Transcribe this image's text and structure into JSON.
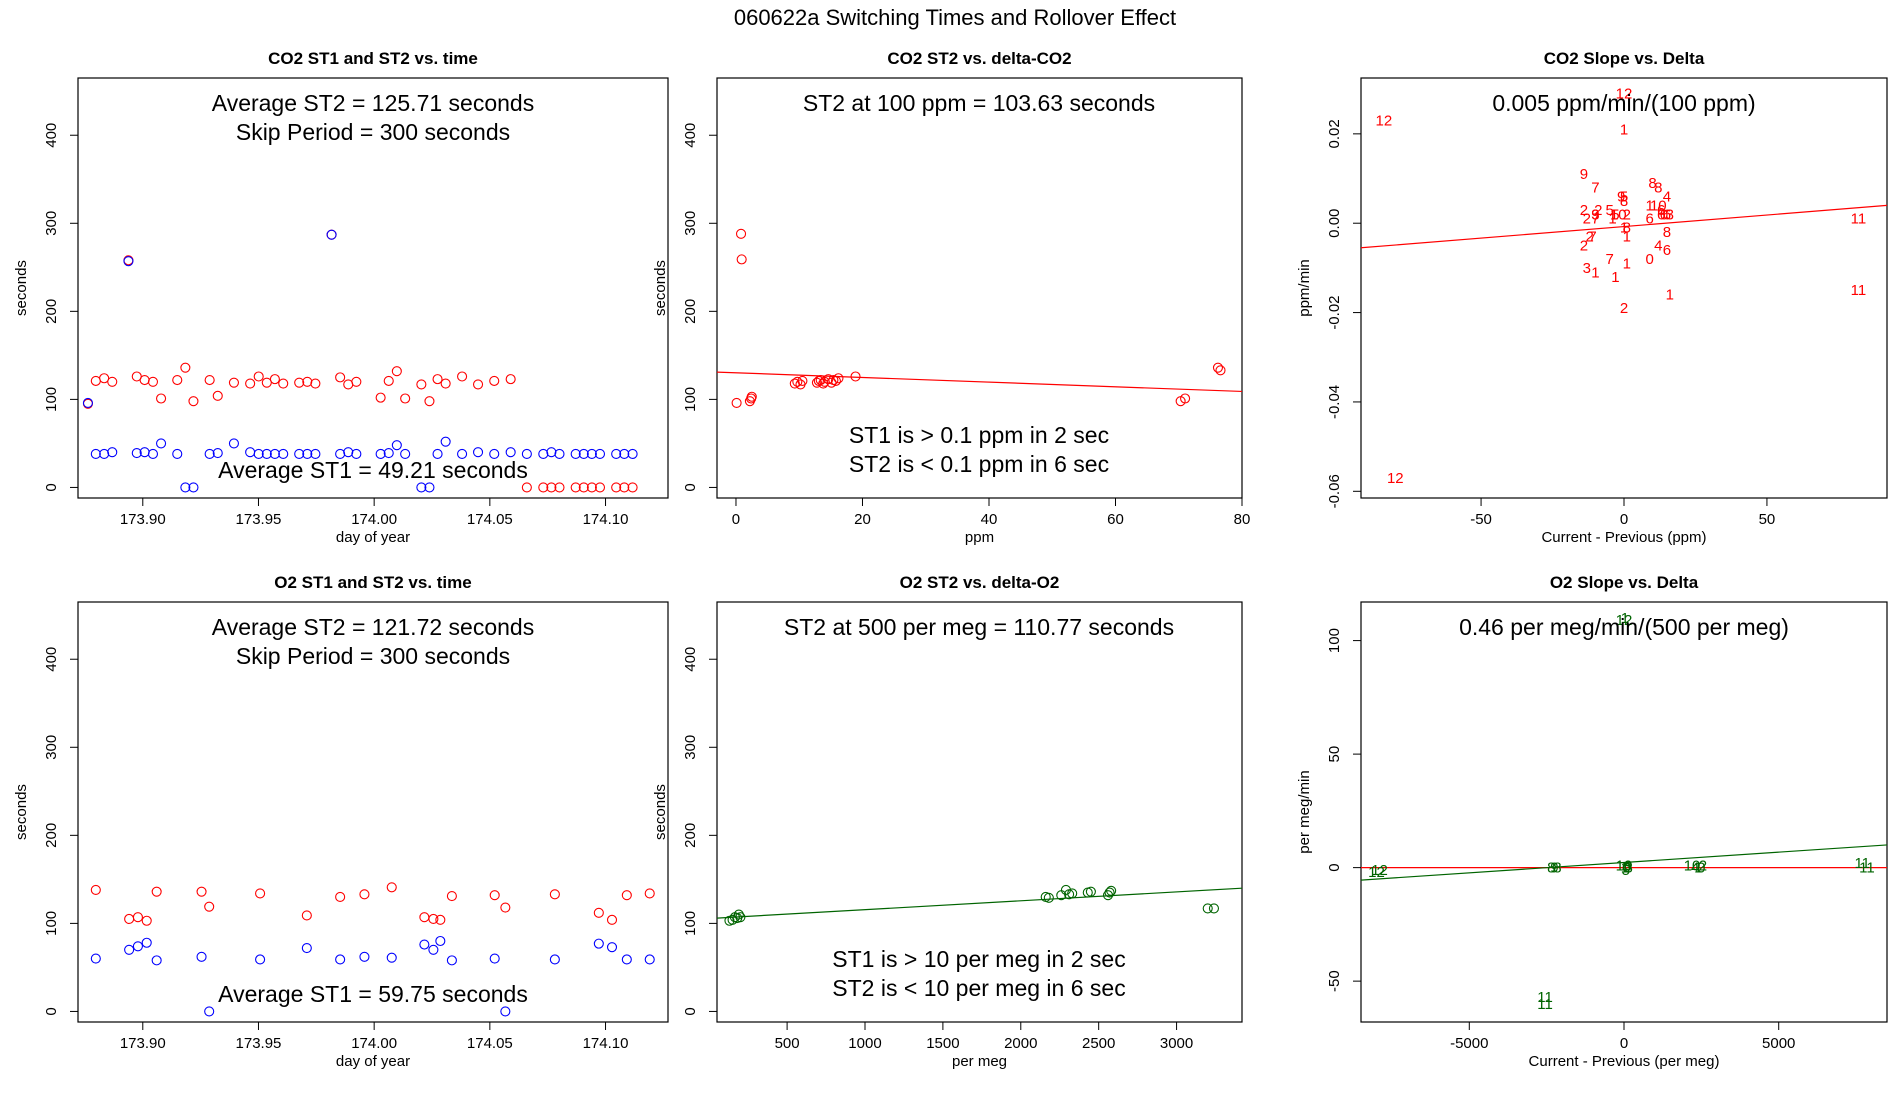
{
  "figure_title": "060622a   Switching Times and Rollover Effect",
  "colors": {
    "st1": "#0000ff",
    "st2": "#ff0000",
    "o2": "#006400",
    "axis": "#000000",
    "purple": "#a020f0"
  },
  "chart_data": [
    {
      "id": "co2_time",
      "type": "scatter",
      "title": "CO2 ST1 and ST2 vs. time",
      "xlabel": "day of year",
      "ylabel": "seconds",
      "xlim": [
        173.872,
        174.127
      ],
      "ylim": [
        -12,
        465
      ],
      "xticks": [
        173.9,
        173.95,
        174.0,
        174.05,
        174.1
      ],
      "xtick_labels": [
        "173.90",
        "173.95",
        "174.00",
        "174.05",
        "174.10"
      ],
      "yticks": [
        0,
        100,
        200,
        300,
        400
      ],
      "annotations": [
        "Average ST2 =  125.71  seconds",
        "Skip Period =  300  seconds",
        "Average ST1 =  49.21  seconds"
      ],
      "series": [
        {
          "name": "ST2",
          "color": "#ff0000",
          "marker": "circle",
          "x": [
            173.8763,
            173.8797,
            173.8833,
            173.8868,
            173.8938,
            173.8974,
            173.9008,
            173.9044,
            173.9079,
            173.9149,
            173.9184,
            173.9219,
            173.9289,
            173.9324,
            173.9394,
            173.9464,
            173.9501,
            173.9536,
            173.9571,
            173.9607,
            173.9676,
            173.9711,
            173.9746,
            173.9816,
            173.9853,
            173.9888,
            173.9923,
            174.0028,
            174.0063,
            174.0098,
            174.0134,
            174.0204,
            174.0239,
            174.0274,
            174.0309,
            174.038,
            174.0449,
            174.0519,
            174.059,
            174.066,
            174.0731,
            174.0766,
            174.0801,
            174.0871,
            174.0906,
            174.0941,
            174.0976,
            174.1046,
            174.1081,
            174.1117
          ],
          "y": [
            95,
            121,
            124,
            120,
            258,
            126,
            122,
            120,
            101,
            122,
            136,
            98,
            122,
            104,
            119,
            118,
            126,
            119,
            123,
            118,
            119,
            120,
            118,
            287,
            125,
            117,
            120,
            102,
            121,
            132,
            101,
            117,
            98,
            123,
            118,
            126,
            117,
            121,
            123,
            0,
            0,
            0,
            0,
            0,
            0,
            0,
            0,
            0,
            0,
            0
          ]
        },
        {
          "name": "ST1",
          "color": "#0000ff",
          "marker": "circle",
          "x": [
            173.8763,
            173.8797,
            173.8833,
            173.8868,
            173.8938,
            173.8974,
            173.9008,
            173.9044,
            173.9079,
            173.9149,
            173.9184,
            173.9219,
            173.9289,
            173.9324,
            173.9394,
            173.9464,
            173.9501,
            173.9536,
            173.9571,
            173.9607,
            173.9676,
            173.9711,
            173.9746,
            173.9816,
            173.9853,
            173.9888,
            173.9923,
            174.0028,
            174.0063,
            174.0098,
            174.0134,
            174.0204,
            174.0239,
            174.0274,
            174.0309,
            174.038,
            174.0449,
            174.0519,
            174.059,
            174.066,
            174.0731,
            174.0766,
            174.0801,
            174.0871,
            174.0906,
            174.0941,
            174.0976,
            174.1046,
            174.1081,
            174.1117
          ],
          "y": [
            96,
            38,
            38,
            40,
            257,
            39,
            40,
            38,
            50,
            38,
            0,
            0,
            38,
            39,
            50,
            40,
            38,
            38,
            38,
            38,
            38,
            38,
            38,
            287,
            38,
            40,
            38,
            38,
            39,
            48,
            38,
            0,
            0,
            38,
            52,
            38,
            40,
            38,
            40,
            38,
            38,
            40,
            38,
            38,
            38,
            38,
            38,
            38,
            38,
            38
          ]
        }
      ]
    },
    {
      "id": "co2_delta",
      "type": "scatter",
      "title": "CO2 ST2 vs. delta-CO2",
      "xlabel": "ppm",
      "ylabel": "seconds",
      "xlim": [
        -3,
        80
      ],
      "ylim": [
        -12,
        465
      ],
      "xticks": [
        0,
        20,
        40,
        60,
        80
      ],
      "xtick_labels": [
        "0",
        "20",
        "40",
        "60",
        "80"
      ],
      "yticks": [
        0,
        100,
        200,
        300,
        400
      ],
      "annotations": [
        "ST2 at 100 ppm =  103.63  seconds",
        "ST1 is > 0.1 ppm in 2 sec",
        "ST2 is < 0.1 ppm in 6 sec"
      ],
      "fit_line": {
        "x": [
          -3,
          80
        ],
        "y": [
          131,
          109
        ],
        "color": "#ff0000"
      },
      "series": [
        {
          "name": "ST2",
          "color": "#ff0000",
          "marker": "circle",
          "x": [
            0.8,
            0.9,
            0.1,
            2.2,
            2.4,
            2.5,
            9.3,
            9.7,
            10.2,
            10.5,
            12.8,
            13.1,
            13.4,
            13.8,
            14.0,
            14.6,
            15.1,
            15.4,
            15.8,
            16.2,
            18.9,
            70.3,
            71.0,
            76.2,
            76.6
          ],
          "y": [
            288,
            259,
            96,
            98,
            101,
            103,
            118,
            120,
            117,
            121,
            119,
            121,
            122,
            118,
            120,
            123,
            119,
            122,
            121,
            124,
            126,
            98,
            101,
            136,
            133
          ]
        }
      ]
    },
    {
      "id": "co2_slope",
      "type": "scatter",
      "title": "CO2 Slope vs. Delta",
      "xlabel": "Current - Previous (ppm)",
      "ylabel": "ppm/min",
      "xlim": [
        -92,
        92
      ],
      "ylim": [
        -0.0615,
        0.0325
      ],
      "xticks": [
        -50,
        0,
        50
      ],
      "xtick_labels": [
        "-50",
        "0",
        "50"
      ],
      "yticks": [
        -0.06,
        -0.04,
        -0.02,
        0.0,
        0.02
      ],
      "ytick_labels": [
        "-0.06",
        "-0.04",
        "-0.02",
        "0.00",
        "0.02"
      ],
      "annotations": [
        "0.005  ppm/min/(100 ppm)"
      ],
      "fit_line": {
        "x": [
          -92,
          92
        ],
        "y": [
          -0.0055,
          0.004
        ],
        "color": "#ff0000"
      },
      "series": [
        {
          "name": "hour labels",
          "color": "#ff0000",
          "marker": "text",
          "x": [
            -84,
            -80,
            0,
            0,
            -14,
            -10,
            -5,
            -9,
            -14,
            -4,
            -10,
            -10,
            -3,
            -10,
            -13,
            -12,
            -11,
            -14,
            -5,
            -13,
            -10,
            -3,
            0,
            -1,
            0,
            1,
            -2,
            0,
            1,
            1,
            10,
            12,
            15,
            9,
            12,
            13,
            16,
            13,
            14,
            15,
            9,
            12,
            15,
            9,
            16,
            0,
            1,
            15,
            82,
            82
          ],
          "y": [
            0.023,
            -0.057,
            0.029,
            0.021,
            0.011,
            0.008,
            0.003,
            0.003,
            0.003,
            0.001,
            0.002,
            0.002,
            0.002,
            0.001,
            0.001,
            -0.003,
            -0.003,
            -0.005,
            -0.008,
            -0.01,
            -0.011,
            -0.012,
            0.006,
            0.006,
            0.005,
            0.002,
            0.002,
            -0.001,
            -0.003,
            -0.009,
            0.009,
            0.008,
            0.006,
            0.004,
            0.004,
            0.003,
            0.002,
            0.002,
            0.002,
            0.002,
            0.001,
            -0.005,
            -0.006,
            -0.008,
            -0.016,
            -0.019,
            -0.001,
            -0.002,
            0.001,
            -0.015
          ],
          "labels": [
            "12",
            "12",
            "12",
            "1",
            "9",
            "7",
            "5",
            "2",
            "2",
            "1",
            "9",
            "3",
            "5",
            "7",
            "2",
            "2",
            "7",
            "2",
            "7",
            "3",
            "1",
            "1",
            "5",
            "9",
            "8",
            "2",
            "10",
            "1",
            "1",
            "1",
            "8",
            "8",
            "4",
            "1",
            "10",
            "6",
            "3",
            "6",
            "0",
            "6",
            "6",
            "4",
            "6",
            "0",
            "1",
            "2",
            "8",
            "8",
            "11",
            "11"
          ]
        }
      ]
    },
    {
      "id": "o2_time",
      "type": "scatter",
      "title": "O2 ST1 and ST2 vs. time",
      "xlabel": "day of year",
      "ylabel": "seconds",
      "xlim": [
        173.872,
        174.127
      ],
      "ylim": [
        -12,
        465
      ],
      "xticks": [
        173.9,
        173.95,
        174.0,
        174.05,
        174.1
      ],
      "xtick_labels": [
        "173.90",
        "173.95",
        "174.00",
        "174.05",
        "174.10"
      ],
      "yticks": [
        0,
        100,
        200,
        300,
        400
      ],
      "annotations": [
        "Average ST2 =  121.72  seconds",
        "Skip Period =  300  seconds",
        "Average ST1 =  59.75  seconds"
      ],
      "series": [
        {
          "name": "ST2",
          "color": "#ff0000",
          "marker": "circle",
          "x": [
            173.8797,
            173.8941,
            173.8979,
            173.9017,
            173.906,
            173.9254,
            173.9287,
            173.9507,
            173.9709,
            173.9853,
            173.9958,
            174.0076,
            174.0217,
            174.0256,
            174.0286,
            174.0336,
            174.0521,
            174.0567,
            174.0781,
            174.0971,
            174.1028,
            174.1092,
            174.1191
          ],
          "y": [
            138,
            105,
            107,
            103,
            136,
            136,
            119,
            134,
            109,
            130,
            133,
            141,
            107,
            105,
            104,
            131,
            132,
            118,
            133,
            112,
            104,
            132,
            134
          ]
        },
        {
          "name": "ST1",
          "color": "#0000ff",
          "marker": "circle",
          "x": [
            173.8797,
            173.8941,
            173.8979,
            173.9017,
            173.906,
            173.9254,
            173.9287,
            173.9507,
            173.9709,
            173.9853,
            173.9958,
            174.0076,
            174.0217,
            174.0256,
            174.0286,
            174.0336,
            174.0521,
            174.0567,
            174.0781,
            174.0971,
            174.1028,
            174.1092,
            174.1191
          ],
          "y": [
            60,
            70,
            74,
            78,
            58,
            62,
            0,
            59,
            72,
            59,
            62,
            61,
            76,
            70,
            80,
            58,
            60,
            0,
            59,
            77,
            73,
            59,
            59
          ]
        }
      ]
    },
    {
      "id": "o2_delta",
      "type": "scatter",
      "title": "O2 ST2 vs. delta-O2",
      "xlabel": "per meg",
      "ylabel": "seconds",
      "xlim": [
        50,
        3420
      ],
      "ylim": [
        -12,
        465
      ],
      "xticks": [
        500,
        1000,
        1500,
        2000,
        2500,
        3000
      ],
      "xtick_labels": [
        "500",
        "1000",
        "1500",
        "2000",
        "2500",
        "3000"
      ],
      "yticks": [
        0,
        100,
        200,
        300,
        400
      ],
      "annotations": [
        "ST2 at 500 per meg =  110.77  seconds",
        "ST1 is > 10 per meg in 2 sec",
        "ST2 is < 10 per meg in 6 sec"
      ],
      "fit_line": {
        "x": [
          50,
          3420
        ],
        "y": [
          106,
          140
        ],
        "color": "#006400"
      },
      "series": [
        {
          "name": "ST2",
          "color": "#006400",
          "marker": "circle",
          "x": [
            130,
            150,
            165,
            180,
            190,
            200,
            2160,
            2180,
            2260,
            2290,
            2310,
            2330,
            2430,
            2450,
            2560,
            2570,
            2580,
            3200,
            3240
          ],
          "y": [
            103,
            104,
            107,
            106,
            110,
            107,
            130,
            129,
            132,
            138,
            133,
            134,
            135,
            136,
            132,
            135,
            137,
            117,
            117
          ]
        }
      ]
    },
    {
      "id": "o2_slope",
      "type": "scatter",
      "title": "O2 Slope vs. Delta",
      "xlabel": "Current - Previous (per meg)",
      "ylabel": "per meg/min",
      "xlim": [
        -8500,
        8500
      ],
      "ylim": [
        -68,
        117
      ],
      "xticks": [
        -5000,
        0,
        5000
      ],
      "xtick_labels": [
        "-5000",
        "0",
        "5000"
      ],
      "yticks": [
        -50,
        0,
        50,
        100
      ],
      "annotations": [
        "0.46  per meg/min/(500 per meg)"
      ],
      "fit_line": {
        "x": [
          -8500,
          8500
        ],
        "y": [
          -5.5,
          10
        ],
        "color": "#006400"
      },
      "ref_line": {
        "y": 0,
        "color": "#ff0000"
      },
      "series": [
        {
          "name": "hour labels",
          "color": "#006400",
          "marker": "text",
          "x": [
            -8000,
            -7900,
            -2350,
            -2250,
            -2150,
            0,
            30,
            60,
            80,
            120,
            150,
            2200,
            2300,
            2400,
            2500,
            2550,
            7700,
            7850,
            0,
            30,
            -2550,
            -2550
          ],
          "y": [
            -2,
            -1,
            0,
            0,
            0,
            1,
            0,
            -1,
            0,
            1,
            0,
            1,
            0,
            0,
            0,
            1,
            2,
            0,
            109,
            110,
            -57,
            -60
          ],
          "labels": [
            "12",
            "12",
            "8",
            "9",
            "8",
            "10",
            "1",
            "5",
            "0",
            "6",
            "3",
            "10",
            "4",
            "1",
            "0",
            "2",
            "11",
            "11",
            "12",
            "1",
            "11",
            "11"
          ]
        }
      ]
    }
  ]
}
